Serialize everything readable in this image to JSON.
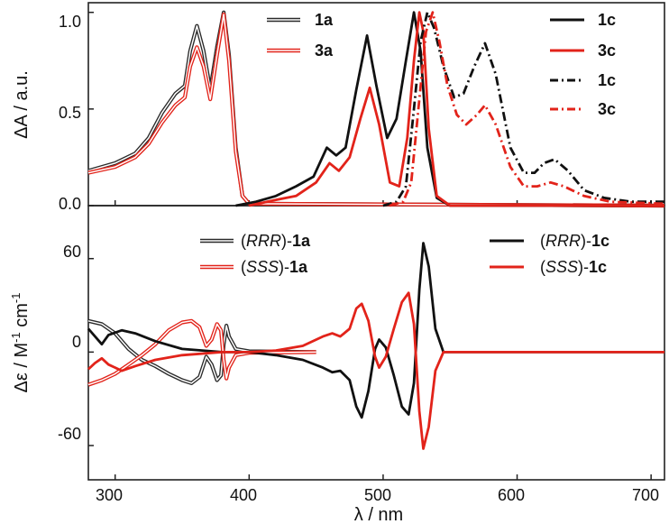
{
  "chart_data": [
    {
      "panel": "top",
      "type": "line",
      "xlabel": "λ / nm",
      "ylabel": "ΔA / a.u.",
      "xlim": [
        280,
        710
      ],
      "ylim": [
        0.0,
        1.05
      ],
      "yticks": [
        "0.0",
        "0.5",
        "1.0"
      ],
      "series": [
        {
          "name": "1a",
          "style": "double",
          "color": "#2a2a2a",
          "legend_position": "top-center",
          "points": [
            [
              280,
              0.18
            ],
            [
              300,
              0.22
            ],
            [
              315,
              0.27
            ],
            [
              325,
              0.35
            ],
            [
              335,
              0.48
            ],
            [
              345,
              0.58
            ],
            [
              352,
              0.62
            ],
            [
              356,
              0.8
            ],
            [
              361,
              0.93
            ],
            [
              366,
              0.8
            ],
            [
              371,
              0.6
            ],
            [
              376,
              0.82
            ],
            [
              381,
              1.0
            ],
            [
              385,
              0.78
            ],
            [
              390,
              0.3
            ],
            [
              395,
              0.05
            ],
            [
              400,
              0.01
            ],
            [
              710,
              0.0
            ]
          ]
        },
        {
          "name": "3a",
          "style": "double",
          "color": "#e2231a",
          "legend_position": "top-center",
          "points": [
            [
              280,
              0.17
            ],
            [
              300,
              0.2
            ],
            [
              315,
              0.25
            ],
            [
              325,
              0.32
            ],
            [
              335,
              0.43
            ],
            [
              345,
              0.52
            ],
            [
              352,
              0.56
            ],
            [
              356,
              0.72
            ],
            [
              361,
              0.82
            ],
            [
              366,
              0.72
            ],
            [
              371,
              0.55
            ],
            [
              376,
              0.78
            ],
            [
              381,
              0.99
            ],
            [
              385,
              0.75
            ],
            [
              390,
              0.28
            ],
            [
              395,
              0.05
            ],
            [
              400,
              0.01
            ],
            [
              710,
              0.0
            ]
          ]
        },
        {
          "name": "1c",
          "style": "solid",
          "color": "#111111",
          "legend_position": "top-right",
          "points": [
            [
              390,
              0.0
            ],
            [
              405,
              0.02
            ],
            [
              420,
              0.05
            ],
            [
              435,
              0.1
            ],
            [
              448,
              0.15
            ],
            [
              458,
              0.3
            ],
            [
              465,
              0.26
            ],
            [
              472,
              0.3
            ],
            [
              480,
              0.6
            ],
            [
              488,
              0.88
            ],
            [
              495,
              0.62
            ],
            [
              503,
              0.35
            ],
            [
              510,
              0.45
            ],
            [
              517,
              0.75
            ],
            [
              523,
              1.0
            ],
            [
              528,
              0.8
            ],
            [
              533,
              0.3
            ],
            [
              540,
              0.04
            ],
            [
              550,
              0.0
            ],
            [
              710,
              0.0
            ]
          ]
        },
        {
          "name": "3c",
          "style": "solid",
          "color": "#e2231a",
          "legend_position": "top-right",
          "points": [
            [
              400,
              0.0
            ],
            [
              420,
              0.03
            ],
            [
              435,
              0.05
            ],
            [
              450,
              0.12
            ],
            [
              460,
              0.22
            ],
            [
              467,
              0.18
            ],
            [
              475,
              0.25
            ],
            [
              483,
              0.45
            ],
            [
              490,
              0.61
            ],
            [
              497,
              0.42
            ],
            [
              505,
              0.12
            ],
            [
              512,
              0.1
            ],
            [
              518,
              0.35
            ],
            [
              523,
              0.75
            ],
            [
              527,
              1.0
            ],
            [
              530,
              0.9
            ],
            [
              534,
              0.4
            ],
            [
              540,
              0.05
            ],
            [
              550,
              0.0
            ],
            [
              710,
              0.0
            ]
          ]
        },
        {
          "name": "1c",
          "style": "dash-dot",
          "color": "#111111",
          "legend_position": "top-right",
          "points": [
            [
              500,
              0.0
            ],
            [
              510,
              0.02
            ],
            [
              517,
              0.1
            ],
            [
              523,
              0.5
            ],
            [
              528,
              0.85
            ],
            [
              533,
              1.0
            ],
            [
              538,
              0.92
            ],
            [
              545,
              0.72
            ],
            [
              553,
              0.56
            ],
            [
              560,
              0.58
            ],
            [
              568,
              0.72
            ],
            [
              576,
              0.84
            ],
            [
              584,
              0.68
            ],
            [
              595,
              0.3
            ],
            [
              605,
              0.17
            ],
            [
              613,
              0.17
            ],
            [
              620,
              0.22
            ],
            [
              628,
              0.24
            ],
            [
              638,
              0.18
            ],
            [
              650,
              0.08
            ],
            [
              665,
              0.04
            ],
            [
              685,
              0.02
            ],
            [
              710,
              0.02
            ]
          ]
        },
        {
          "name": "3c",
          "style": "dash-dot",
          "color": "#e2231a",
          "legend_position": "top-right",
          "points": [
            [
              505,
              0.0
            ],
            [
              515,
              0.02
            ],
            [
              521,
              0.12
            ],
            [
              527,
              0.55
            ],
            [
              532,
              0.9
            ],
            [
              537,
              1.0
            ],
            [
              542,
              0.85
            ],
            [
              548,
              0.62
            ],
            [
              555,
              0.47
            ],
            [
              562,
              0.42
            ],
            [
              570,
              0.47
            ],
            [
              576,
              0.52
            ],
            [
              584,
              0.42
            ],
            [
              595,
              0.2
            ],
            [
              605,
              0.1
            ],
            [
              615,
              0.1
            ],
            [
              625,
              0.12
            ],
            [
              635,
              0.1
            ],
            [
              650,
              0.05
            ],
            [
              670,
              0.02
            ],
            [
              710,
              0.01
            ]
          ]
        }
      ]
    },
    {
      "panel": "bottom",
      "type": "line",
      "xlabel": "λ / nm",
      "ylabel": "Δε / M⁻¹ cm⁻¹",
      "ylabel_parts": [
        "Δε / M",
        "-1",
        " cm",
        "-1"
      ],
      "xlim": [
        280,
        710
      ],
      "ylim": [
        -82,
        94
      ],
      "xticks": [
        "300",
        "400",
        "500",
        "600",
        "700"
      ],
      "yticks": [
        "60",
        "0",
        "-60"
      ],
      "series": [
        {
          "name_prefix": "(",
          "name_italic": "RRR",
          "name_suffix": ")-",
          "name_bold": "1a",
          "style": "double",
          "color": "#2a2a2a",
          "legend_position": "top-left",
          "points": [
            [
              280,
              20
            ],
            [
              290,
              18
            ],
            [
              300,
              12
            ],
            [
              310,
              2
            ],
            [
              320,
              -5
            ],
            [
              330,
              -9
            ],
            [
              340,
              -14
            ],
            [
              350,
              -18
            ],
            [
              357,
              -20
            ],
            [
              363,
              -16
            ],
            [
              368,
              -3
            ],
            [
              372,
              -8
            ],
            [
              376,
              -18
            ],
            [
              379,
              -15
            ],
            [
              381,
              5
            ],
            [
              383,
              17
            ],
            [
              385,
              10
            ],
            [
              390,
              2
            ],
            [
              400,
              0.5
            ],
            [
              450,
              0
            ]
          ]
        },
        {
          "name_prefix": "(",
          "name_italic": "SSS",
          "name_suffix": ")-",
          "name_bold": "1a",
          "style": "double",
          "color": "#e2231a",
          "legend_position": "top-left",
          "points": [
            [
              280,
              -21
            ],
            [
              290,
              -18
            ],
            [
              300,
              -14
            ],
            [
              310,
              -8
            ],
            [
              320,
              -2
            ],
            [
              330,
              5
            ],
            [
              340,
              14
            ],
            [
              350,
              19
            ],
            [
              357,
              20
            ],
            [
              363,
              16
            ],
            [
              368,
              4
            ],
            [
              372,
              8
            ],
            [
              376,
              18
            ],
            [
              379,
              14
            ],
            [
              381,
              -5
            ],
            [
              383,
              -17
            ],
            [
              385,
              -10
            ],
            [
              390,
              -2
            ],
            [
              400,
              -0.5
            ],
            [
              450,
              0
            ]
          ]
        },
        {
          "name_prefix": "(",
          "name_italic": "RRR",
          "name_suffix": ")-",
          "name_bold": "1c",
          "style": "solid",
          "color": "#111111",
          "legend_position": "top-right",
          "points": [
            [
              280,
              15
            ],
            [
              290,
              5
            ],
            [
              295,
              11
            ],
            [
              305,
              14
            ],
            [
              315,
              12
            ],
            [
              330,
              7
            ],
            [
              350,
              2
            ],
            [
              380,
              0
            ],
            [
              400,
              0
            ],
            [
              420,
              -2
            ],
            [
              440,
              -5
            ],
            [
              455,
              -10
            ],
            [
              462,
              -13
            ],
            [
              468,
              -12
            ],
            [
              475,
              -18
            ],
            [
              480,
              -35
            ],
            [
              484,
              -42
            ],
            [
              489,
              -25
            ],
            [
              494,
              2
            ],
            [
              497,
              8
            ],
            [
              502,
              3
            ],
            [
              508,
              -15
            ],
            [
              514,
              -35
            ],
            [
              519,
              -40
            ],
            [
              523,
              -20
            ],
            [
              527,
              40
            ],
            [
              530,
              70
            ],
            [
              534,
              55
            ],
            [
              539,
              15
            ],
            [
              545,
              0
            ],
            [
              710,
              0
            ]
          ]
        },
        {
          "name_prefix": "(",
          "name_italic": "SSS",
          "name_suffix": ")-",
          "name_bold": "1c",
          "style": "solid",
          "color": "#e2231a",
          "legend_position": "top-right",
          "points": [
            [
              280,
              -11
            ],
            [
              285,
              -7
            ],
            [
              290,
              -4
            ],
            [
              295,
              -8
            ],
            [
              305,
              -12
            ],
            [
              315,
              -9
            ],
            [
              330,
              -5
            ],
            [
              350,
              -2
            ],
            [
              380,
              0
            ],
            [
              400,
              0
            ],
            [
              420,
              1
            ],
            [
              440,
              4
            ],
            [
              455,
              10
            ],
            [
              462,
              12
            ],
            [
              468,
              10
            ],
            [
              475,
              15
            ],
            [
              480,
              28
            ],
            [
              484,
              31
            ],
            [
              489,
              20
            ],
            [
              494,
              -3
            ],
            [
              497,
              -10
            ],
            [
              502,
              -3
            ],
            [
              508,
              15
            ],
            [
              514,
              32
            ],
            [
              519,
              38
            ],
            [
              523,
              18
            ],
            [
              527,
              -38
            ],
            [
              530,
              -62
            ],
            [
              534,
              -48
            ],
            [
              539,
              -12
            ],
            [
              545,
              0
            ],
            [
              710,
              0
            ]
          ]
        }
      ]
    }
  ]
}
